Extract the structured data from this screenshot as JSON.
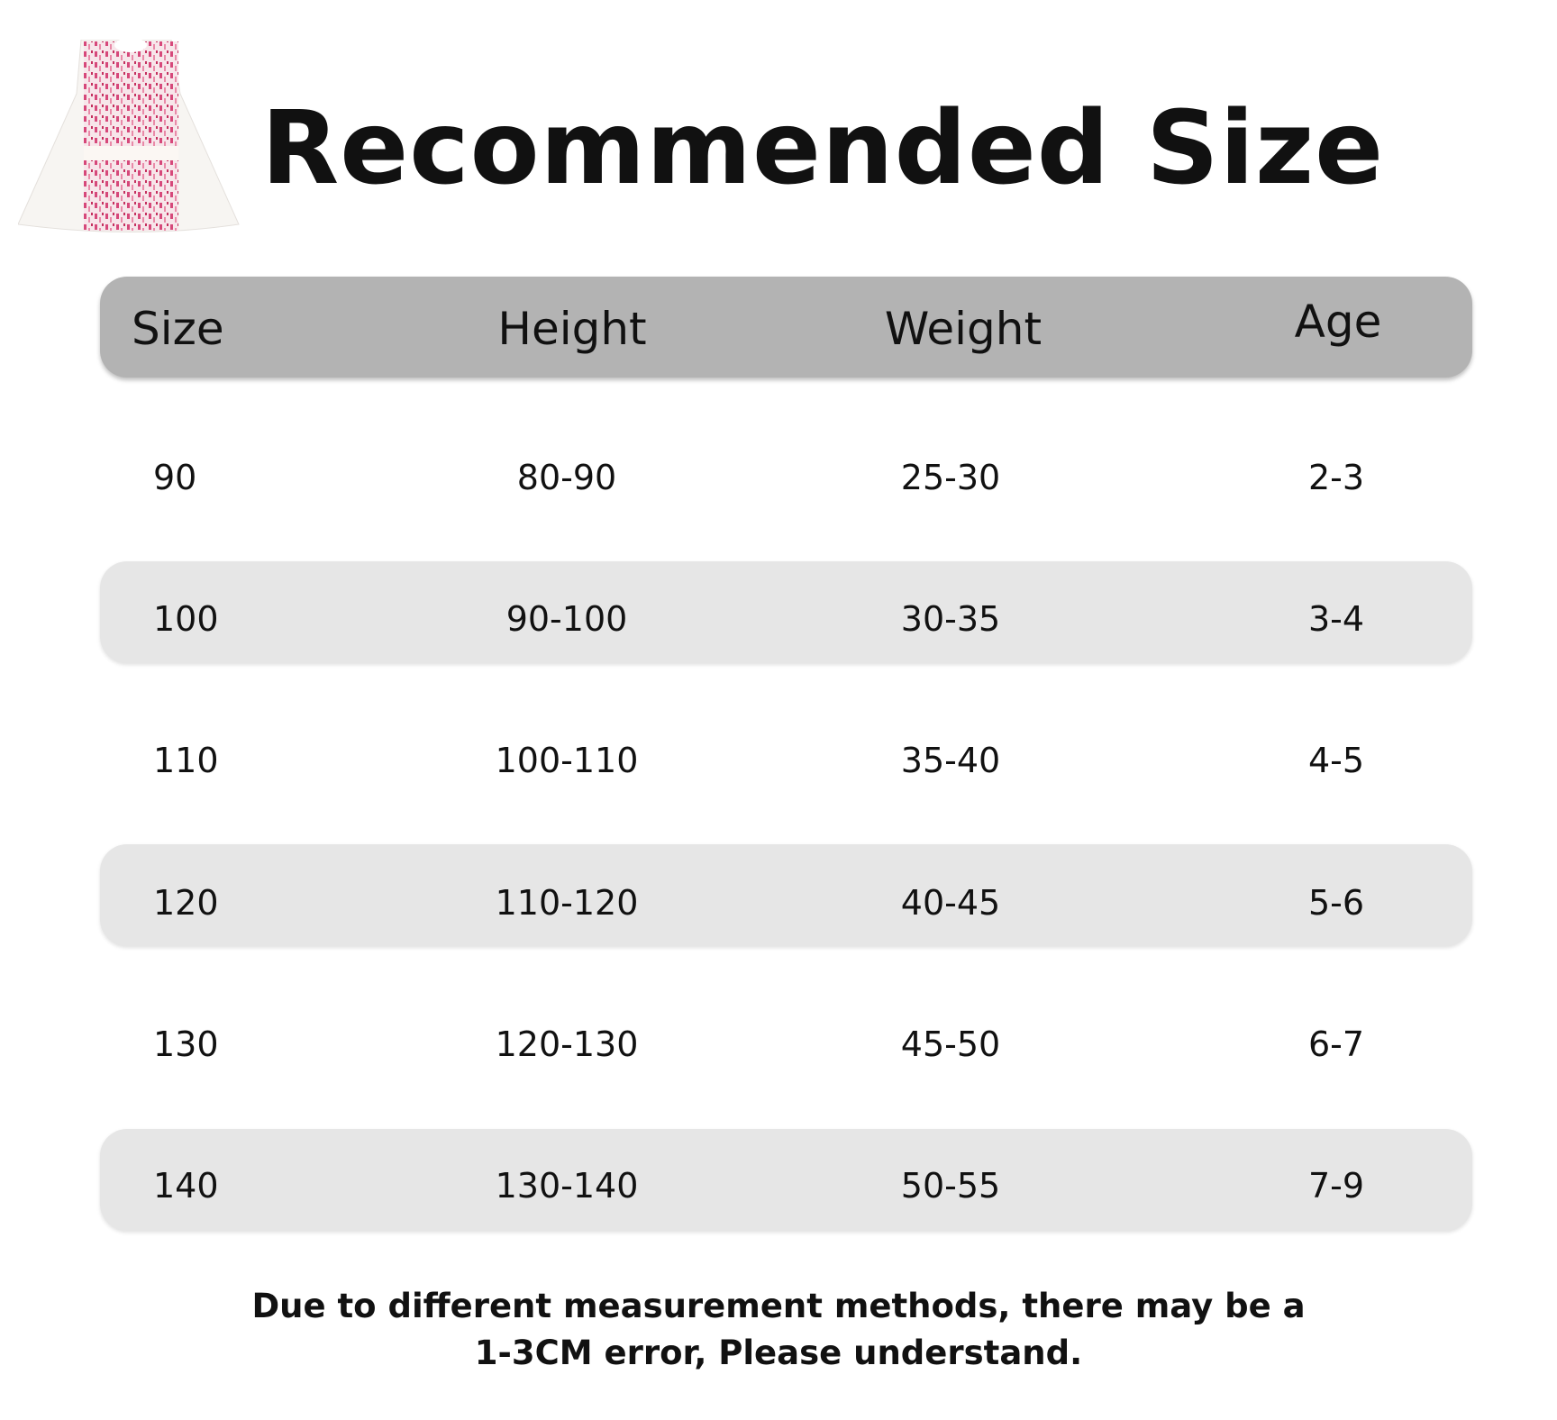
{
  "title": "Recommended Size",
  "table": {
    "headers": [
      "Size",
      "Height",
      "Weight",
      "Age"
    ],
    "rows": [
      [
        "90",
        "80-90",
        "25-30",
        "2-3"
      ],
      [
        "100",
        "90-100",
        "30-35",
        "3-4"
      ],
      [
        "110",
        "100-110",
        "35-40",
        "4-5"
      ],
      [
        "120",
        "110-120",
        "40-45",
        "5-6"
      ],
      [
        "130",
        "120-130",
        "45-50",
        "6-7"
      ],
      [
        "140",
        "130-140",
        "50-55",
        "7-9"
      ]
    ]
  },
  "note": {
    "line1": "Due to different measurement methods, there may be a",
    "line2": "1-3CM error, Please understand."
  },
  "colors": {
    "header_bg": "#b3b3b3",
    "stripe_bg": "#e6e6e6",
    "dress_pattern": "#d6487a"
  }
}
